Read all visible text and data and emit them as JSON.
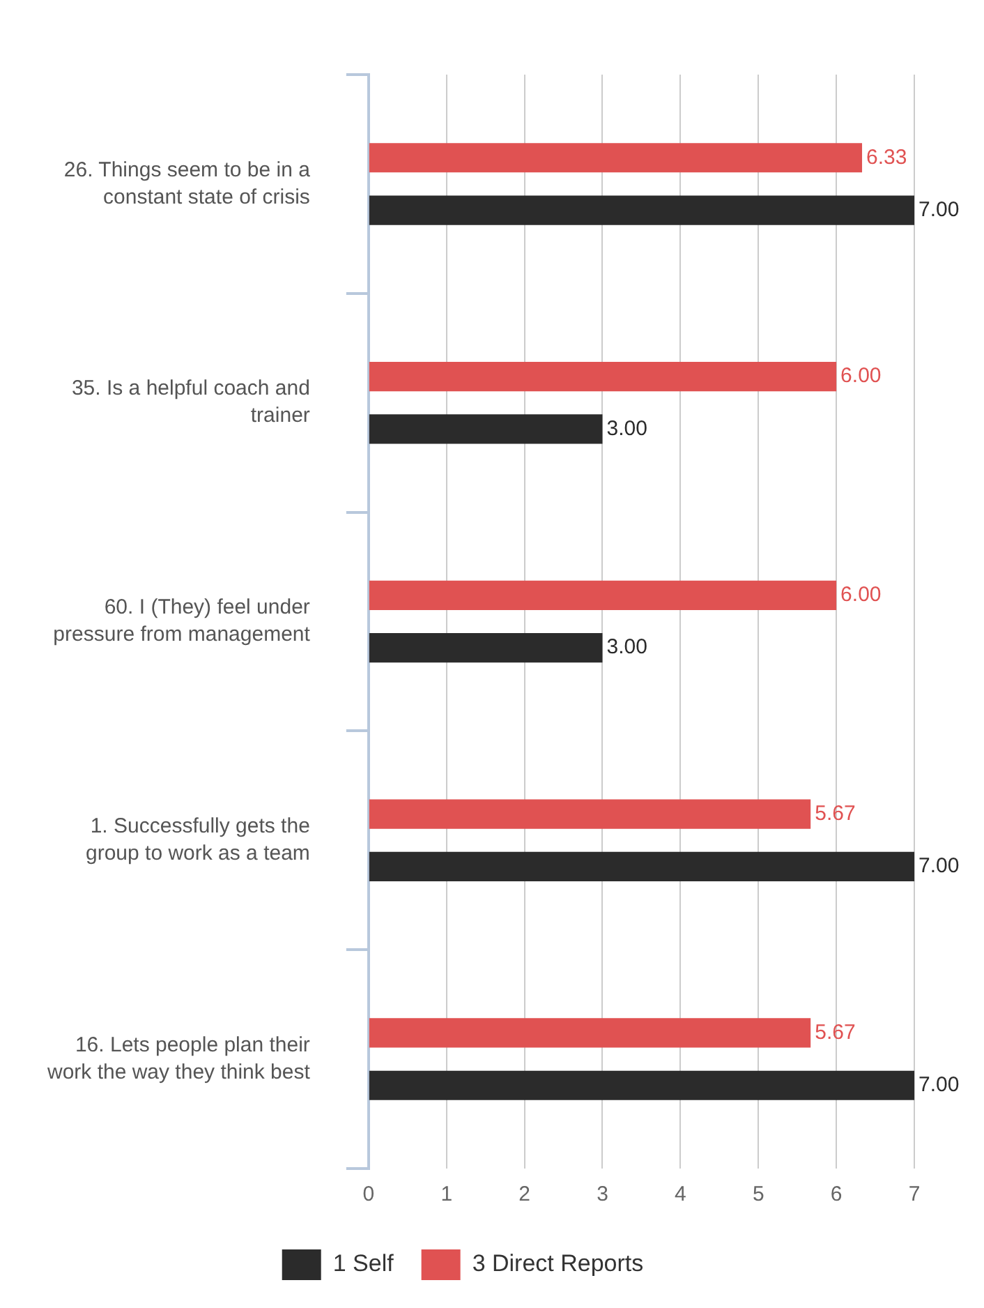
{
  "chart_data": {
    "type": "bar",
    "orientation": "horizontal",
    "categories": [
      "26. Things seem to be in a constant state of crisis",
      "35. Is a helpful coach and trainer",
      "60. I (They) feel under pressure from management",
      "1. Successfully gets the group to work as a team",
      "16. Lets people plan their work the way they think best"
    ],
    "series": [
      {
        "name": "1 Self",
        "color": "#2b2b2b",
        "values": [
          7,
          3,
          3,
          7,
          7
        ],
        "value_labels": [
          "7.00",
          "3.00",
          "3.00",
          "7.00",
          "7.00"
        ]
      },
      {
        "name": "3 Direct Reports",
        "color": "#e05252",
        "values": [
          6.33,
          6,
          6,
          5.67,
          5.67
        ],
        "value_labels": [
          "6.33",
          "6.00",
          "6.00",
          "5.67",
          "5.67"
        ]
      }
    ],
    "xlim": [
      0,
      7
    ],
    "xticks": [
      0,
      1,
      2,
      3,
      4,
      5,
      6,
      7
    ],
    "grid": "x",
    "legend": "bottom"
  }
}
